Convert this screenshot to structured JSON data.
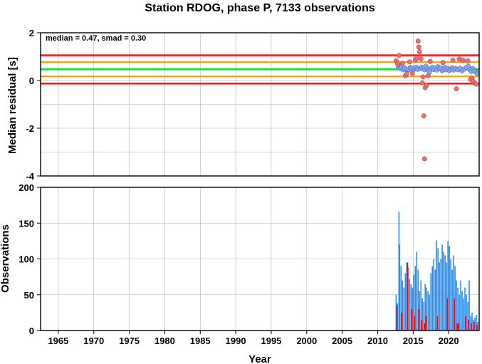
{
  "chart_data": [
    {
      "type": "scatter",
      "title": "Station RDOG, phase P, 7133 observations",
      "ylabel": "Median residual [s]",
      "xlim": [
        1962.5,
        2024.3
      ],
      "ylim": [
        -4,
        2
      ],
      "yticks": [
        -4,
        -2,
        0,
        2
      ],
      "annotation": "median = 0.47, smad = 0.30",
      "reference_lines": [
        {
          "y": 1.06,
          "color": "#ff0000"
        },
        {
          "y": 0.77,
          "color": "#ff9900"
        },
        {
          "y": 0.47,
          "color": "#00ee00"
        },
        {
          "y": 0.17,
          "color": "#ff9900"
        },
        {
          "y": -0.13,
          "color": "#ff0000"
        }
      ],
      "reference_band": [
        0.4,
        0.54
      ],
      "series": [
        {
          "marker_color": "#7fa8ff",
          "points": [
            [
              2012.9,
              0.55
            ],
            [
              2013.1,
              0.62
            ],
            [
              2013.2,
              0.5
            ],
            [
              2013.4,
              0.58
            ],
            [
              2013.6,
              0.45
            ],
            [
              2013.8,
              0.52
            ],
            [
              2014.0,
              0.48
            ],
            [
              2014.2,
              0.4
            ],
            [
              2014.4,
              0.46
            ],
            [
              2014.6,
              0.55
            ],
            [
              2014.8,
              0.5
            ],
            [
              2015.0,
              0.44
            ],
            [
              2015.2,
              0.49
            ],
            [
              2015.4,
              0.56
            ],
            [
              2015.6,
              0.47
            ],
            [
              2016.0,
              0.5
            ],
            [
              2016.2,
              0.55
            ],
            [
              2016.4,
              0.52
            ],
            [
              2016.6,
              0.45
            ],
            [
              2016.8,
              0.6
            ],
            [
              2017.0,
              0.48
            ],
            [
              2017.2,
              0.42
            ],
            [
              2017.3,
              0.35
            ],
            [
              2017.5,
              0.5
            ],
            [
              2017.7,
              0.55
            ],
            [
              2017.9,
              0.46
            ],
            [
              2018.1,
              0.52
            ],
            [
              2018.3,
              0.44
            ],
            [
              2018.5,
              0.58
            ],
            [
              2018.7,
              0.49
            ],
            [
              2018.9,
              0.53
            ],
            [
              2019.1,
              0.4
            ],
            [
              2019.3,
              0.47
            ],
            [
              2019.5,
              0.55
            ],
            [
              2019.7,
              0.45
            ],
            [
              2019.9,
              0.5
            ],
            [
              2020.1,
              0.42
            ],
            [
              2020.3,
              0.48
            ],
            [
              2020.5,
              0.54
            ],
            [
              2020.7,
              0.44
            ],
            [
              2021.0,
              0.5
            ],
            [
              2021.3,
              0.45
            ],
            [
              2021.6,
              0.52
            ],
            [
              2021.9,
              0.4
            ],
            [
              2022.2,
              0.48
            ],
            [
              2022.5,
              0.55
            ],
            [
              2022.8,
              0.6
            ],
            [
              2023.0,
              0.45
            ],
            [
              2023.2,
              0.38
            ],
            [
              2023.4,
              0.5
            ],
            [
              2023.6,
              0.42
            ],
            [
              2023.8,
              0.35
            ],
            [
              2024.0,
              0.3
            ]
          ]
        },
        {
          "marker_color": "#ff6666",
          "points": [
            [
              2012.6,
              0.82
            ],
            [
              2012.8,
              0.7
            ],
            [
              2013.0,
              1.05
            ],
            [
              2013.5,
              0.72
            ],
            [
              2013.9,
              0.2
            ],
            [
              2014.1,
              0.28
            ],
            [
              2014.5,
              0.78
            ],
            [
              2014.9,
              0.3
            ],
            [
              2015.3,
              0.85
            ],
            [
              2015.5,
              0.95
            ],
            [
              2015.7,
              1.65
            ],
            [
              2015.8,
              1.4
            ],
            [
              2015.9,
              1.2
            ],
            [
              2016.1,
              0.9
            ],
            [
              2016.3,
              -0.1
            ],
            [
              2016.4,
              0.15
            ],
            [
              2016.5,
              -1.48
            ],
            [
              2016.6,
              -3.28
            ],
            [
              2016.7,
              -0.3
            ],
            [
              2016.9,
              -0.2
            ],
            [
              2017.1,
              0.2
            ],
            [
              2017.4,
              0.8
            ],
            [
              2019.2,
              0.75
            ],
            [
              2020.6,
              0.85
            ],
            [
              2021.1,
              -0.35
            ],
            [
              2021.5,
              0.9
            ],
            [
              2022.0,
              0.85
            ],
            [
              2022.7,
              0.82
            ],
            [
              2023.1,
              0.05
            ],
            [
              2023.3,
              0.1
            ],
            [
              2023.5,
              -0.05
            ],
            [
              2023.7,
              -0.12
            ],
            [
              2023.9,
              -0.15
            ]
          ]
        }
      ]
    },
    {
      "type": "bar",
      "xlabel": "Year",
      "ylabel": "Observations",
      "xlim": [
        1962.5,
        2024.3
      ],
      "ylim": [
        0,
        200
      ],
      "yticks": [
        0,
        50,
        100,
        150,
        200
      ],
      "xticks": [
        1965,
        1970,
        1975,
        1980,
        1985,
        1990,
        1995,
        2000,
        2005,
        2010,
        2015,
        2020
      ],
      "series": [
        {
          "color": "#1e90ff",
          "x": [
            2012.6,
            2012.8,
            2013.0,
            2013.1,
            2013.3,
            2013.5,
            2013.7,
            2013.9,
            2014.1,
            2014.3,
            2014.5,
            2014.7,
            2014.9,
            2015.1,
            2015.3,
            2015.5,
            2015.7,
            2015.9,
            2016.1,
            2016.3,
            2016.5,
            2016.7,
            2016.9,
            2017.1,
            2017.3,
            2017.5,
            2017.7,
            2017.9,
            2018.1,
            2018.3,
            2018.5,
            2018.7,
            2018.9,
            2019.1,
            2019.3,
            2019.5,
            2019.7,
            2019.9,
            2020.1,
            2020.3,
            2020.5,
            2020.7,
            2020.9,
            2021.1,
            2021.3,
            2021.5,
            2021.7,
            2021.9,
            2022.1,
            2022.3,
            2022.5,
            2022.7,
            2022.9,
            2023.1,
            2023.3,
            2023.5,
            2023.7,
            2023.9,
            2024.1
          ],
          "values": [
            50,
            38,
            166,
            120,
            90,
            70,
            60,
            80,
            95,
            88,
            72,
            65,
            60,
            78,
            90,
            110,
            85,
            55,
            70,
            45,
            40,
            65,
            60,
            55,
            50,
            80,
            90,
            100,
            85,
            126,
            115,
            95,
            100,
            120,
            110,
            105,
            95,
            125,
            118,
            100,
            85,
            105,
            90,
            70,
            60,
            50,
            70,
            55,
            45,
            60,
            50,
            40,
            70,
            20,
            25,
            15,
            18,
            22,
            12
          ]
        },
        {
          "color": "#ff0000",
          "x": [
            2012.7,
            2013.4,
            2014.2,
            2014.8,
            2015.2,
            2015.8,
            2016.2,
            2016.6,
            2016.8,
            2018.4,
            2019.8,
            2020.8,
            2021.2,
            2021.4,
            2022.4,
            2022.8,
            2023.2,
            2023.6,
            2024.0
          ],
          "values": [
            35,
            25,
            95,
            30,
            20,
            30,
            15,
            10,
            20,
            20,
            45,
            45,
            10,
            10,
            20,
            15,
            10,
            12,
            8
          ]
        }
      ]
    }
  ]
}
